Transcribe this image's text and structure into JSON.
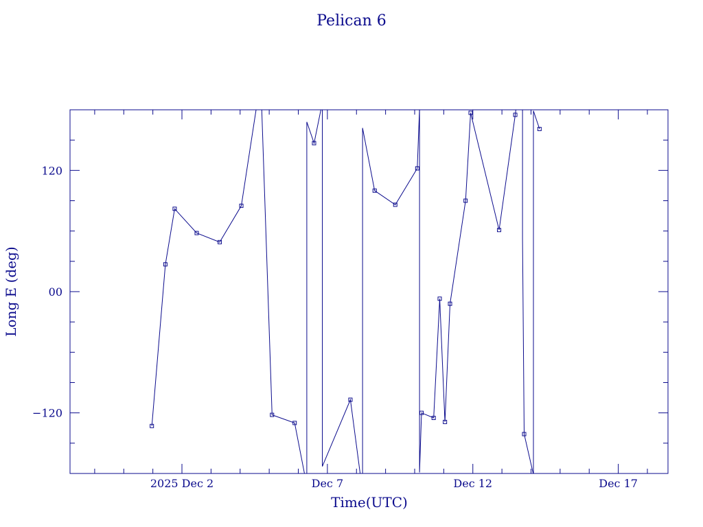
{
  "chart_data": {
    "type": "line",
    "title": "Pelican 6",
    "xlabel": "Time(UTC)",
    "ylabel": "Long E (deg)",
    "color": "#0a0a8c",
    "xlim": [
      "2025-11-28 03:40",
      "2025-12-18 17:00"
    ],
    "ylim": [
      -180,
      180
    ],
    "yticks": [
      {
        "value": -120,
        "label": "−120"
      },
      {
        "value": 0,
        "label": "00"
      },
      {
        "value": 120,
        "label": "120"
      }
    ],
    "xticks": [
      {
        "date": "2025-12-02",
        "label": "2025 Dec  2"
      },
      {
        "date": "2025-12-07",
        "label": "Dec  7"
      },
      {
        "date": "2025-12-12",
        "label": "Dec 12"
      },
      {
        "date": "2025-12-17",
        "label": "Dec 17"
      }
    ],
    "grid": false,
    "series": [
      {
        "markers": true,
        "points": [
          [
            "2025-11-30 23:10",
            -133
          ],
          [
            "2025-12-01 10:20",
            27
          ],
          [
            "2025-12-01 18:00",
            82
          ],
          [
            "2025-12-02 12:10",
            58
          ],
          [
            "2025-12-03 07:10",
            49
          ],
          [
            "2025-12-04 01:00",
            85
          ],
          [
            "2025-12-04 17:00",
            210
          ],
          [
            "2025-12-05 02:20",
            -122
          ],
          [
            "2025-12-05 21:00",
            -130
          ],
          [
            "2025-12-06 07:00",
            -192
          ],
          [
            "2025-12-06 07:00",
            168
          ],
          [
            "2025-12-06 13:00",
            147
          ],
          [
            "2025-12-06 19:50",
            187
          ],
          [
            "2025-12-06 19:50",
            -173
          ],
          [
            "2025-12-07 19:00",
            -107
          ],
          [
            "2025-12-08 05:00",
            -198
          ],
          [
            "2025-12-08 05:00",
            162
          ],
          [
            "2025-12-08 15:00",
            100
          ],
          [
            "2025-12-09 08:00",
            86
          ],
          [
            "2025-12-10 02:10",
            122
          ],
          [
            "2025-12-10 04:00",
            181
          ],
          [
            "2025-12-10 04:00",
            -179
          ],
          [
            "2025-12-10 05:40",
            -120
          ],
          [
            "2025-12-10 15:40",
            -125
          ],
          [
            "2025-12-10 20:40",
            -7
          ],
          [
            "2025-12-11 01:00",
            -129
          ],
          [
            "2025-12-11 05:10",
            -12
          ],
          [
            "2025-12-11 18:00",
            90
          ],
          [
            "2025-12-11 22:10",
            177
          ],
          [
            "2025-12-12 21:40",
            61
          ],
          [
            "2025-12-13 11:00",
            175
          ],
          [
            "2025-12-13 17:00",
            234
          ],
          [
            "2025-12-13 17:00",
            53
          ],
          [
            "2025-12-13 18:20",
            -141
          ],
          [
            "2025-12-14 02:00",
            -181
          ],
          [
            "2025-12-14 02:00",
            179
          ],
          [
            "2025-12-14 07:00",
            161
          ]
        ]
      }
    ]
  }
}
